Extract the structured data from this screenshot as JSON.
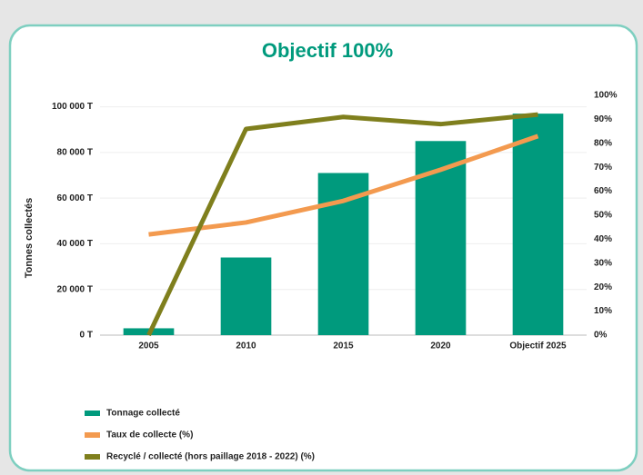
{
  "chart_data": {
    "type": "bar",
    "title": "Objectif 100%",
    "y_label": "Tonnes collectés",
    "categories": [
      "2005",
      "2010",
      "2015",
      "2020",
      "Objectif 2025"
    ],
    "series": [
      {
        "name": "Tonnage collecté",
        "type": "bar",
        "color": "#009a7d",
        "values": [
          3000,
          34000,
          71000,
          85000,
          97000
        ]
      },
      {
        "name": "Taux de collecte (%)",
        "type": "line",
        "axis": "y2",
        "color": "#f39a4f",
        "values": [
          42,
          47,
          56,
          69,
          83
        ]
      },
      {
        "name": "Recyclé / collecté (hors paillage 2018 - 2022) (%)",
        "type": "line",
        "axis": "y2",
        "color": "#7f7f1d",
        "values": [
          0,
          86,
          91,
          88,
          92
        ]
      }
    ],
    "ylim": [
      0,
      105000
    ],
    "yticks": [
      {
        "value": 0,
        "label": "0 T"
      },
      {
        "value": 20000,
        "label": "20 000 T"
      },
      {
        "value": 40000,
        "label": "40 000 T"
      },
      {
        "value": 60000,
        "label": "60 000 T"
      },
      {
        "value": 80000,
        "label": "80 000 T"
      },
      {
        "value": 100000,
        "label": "100 000 T"
      }
    ],
    "y2lim": [
      0,
      100
    ],
    "y2ticks": [
      {
        "value": 0,
        "label": "0%"
      },
      {
        "value": 10,
        "label": "10%"
      },
      {
        "value": 20,
        "label": "20%"
      },
      {
        "value": 30,
        "label": "30%"
      },
      {
        "value": 40,
        "label": "40%"
      },
      {
        "value": 50,
        "label": "50%"
      },
      {
        "value": 60,
        "label": "60%"
      },
      {
        "value": 70,
        "label": "70%"
      },
      {
        "value": 80,
        "label": "80%"
      },
      {
        "value": 90,
        "label": "90%"
      },
      {
        "value": 100,
        "label": "100%"
      }
    ],
    "grid": true
  }
}
